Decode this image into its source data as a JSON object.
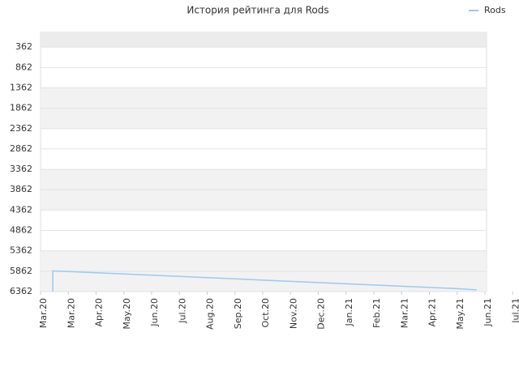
{
  "chart_data": {
    "type": "line",
    "title": "История рейтинга для Rods",
    "xlim": [
      0,
      16
    ],
    "xticks": [
      {
        "value": 0,
        "label": "Mar.20"
      },
      {
        "value": 1,
        "label": "Mar.20"
      },
      {
        "value": 2,
        "label": "Apr.20"
      },
      {
        "value": 3,
        "label": "May.20"
      },
      {
        "value": 4,
        "label": "Jun.20"
      },
      {
        "value": 5,
        "label": "Jul.20"
      },
      {
        "value": 6,
        "label": "Aug.20"
      },
      {
        "value": 7,
        "label": "Sep.20"
      },
      {
        "value": 8,
        "label": "Oct.20"
      },
      {
        "value": 9,
        "label": "Nov.20"
      },
      {
        "value": 10,
        "label": "Dec.20"
      },
      {
        "value": 11,
        "label": "Jan.21"
      },
      {
        "value": 12,
        "label": "Feb.21"
      },
      {
        "value": 13,
        "label": "Mar.21"
      },
      {
        "value": 14,
        "label": "Apr.21"
      },
      {
        "value": 15,
        "label": "May.21"
      },
      {
        "value": 16,
        "label": "Jun.21"
      },
      {
        "value": 17,
        "label": "Jul.21"
      }
    ],
    "ylim": [
      6362,
      1
    ],
    "yticks": [
      362,
      862,
      1362,
      1862,
      2362,
      2862,
      3362,
      3862,
      4362,
      4862,
      5362,
      5862,
      6362
    ],
    "grid": true,
    "legend": "top-right",
    "series": [
      {
        "name": "Rods",
        "color": "#9ec8f0",
        "x": [
          0.44,
          0.44,
          1,
          2,
          3,
          4,
          5,
          6,
          7,
          8,
          9,
          10,
          11,
          12,
          13,
          14,
          15,
          15.7
        ],
        "values": [
          6362,
          5855,
          5870,
          5900,
          5930,
          5960,
          5990,
          6020,
          6050,
          6080,
          6110,
          6140,
          6170,
          6200,
          6230,
          6260,
          6290,
          6320
        ]
      }
    ]
  }
}
